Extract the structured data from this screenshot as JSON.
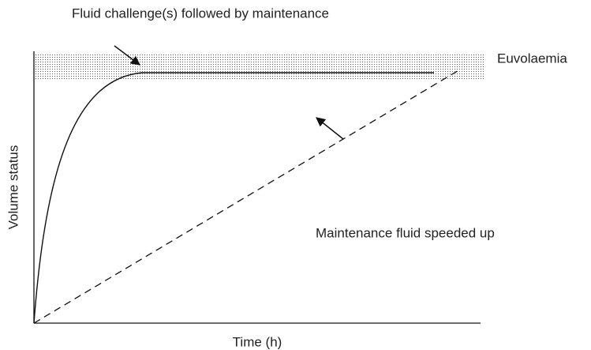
{
  "diagram": {
    "y_axis_label": "Volume status",
    "x_axis_label": "Time (h)",
    "band_label": "Euvolaemia",
    "annotations": [
      "Fluid challenge(s) followed by maintenance",
      "Maintenance fluid speeded up"
    ]
  }
}
